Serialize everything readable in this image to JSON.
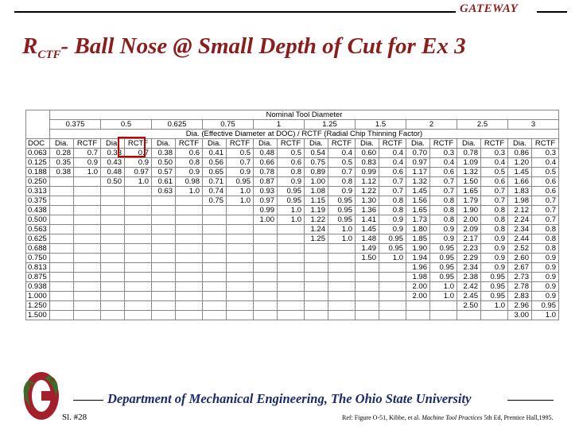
{
  "header": {
    "brand": "GATEWAY"
  },
  "title": {
    "main": "R",
    "sub": "CTF",
    "rest": "- Ball Nose @ Small Depth of Cut for Ex 3"
  },
  "table": {
    "top_header": "Nominal Tool Diameter",
    "diameters": [
      "0.375",
      "0.5",
      "0.625",
      "0.75",
      "1",
      "1.25",
      "1.5",
      "2",
      "2.5",
      "3"
    ],
    "sub_header": "Dia. (Effective Diameter at DOC) / RCTF (Radial Chip Thinning Factor)",
    "col_labels": [
      "DOC",
      "Dia.",
      "RCTF",
      "Dia.",
      "RCTF",
      "Dia.",
      "RCTF",
      "Dia.",
      "RCTF",
      "Dia.",
      "RCTF",
      "Dia.",
      "RCTF",
      "Dia.",
      "RCTF",
      "Dia.",
      "RCTF",
      "Dia.",
      "RCTF",
      "Dia.",
      "RCTF"
    ],
    "rows": [
      [
        "0.063",
        "0.28",
        "0.7",
        "0.33",
        "0.7",
        "0.38",
        "0.6",
        "0.41",
        "0.5",
        "0.48",
        "0.5",
        "0.54",
        "0.4",
        "0.60",
        "0.4",
        "0.70",
        "0.3",
        "0.78",
        "0.3",
        "0.86",
        "0.3"
      ],
      [
        "0.125",
        "0.35",
        "0.9",
        "0.43",
        "0.9",
        "0.50",
        "0.8",
        "0.56",
        "0.7",
        "0.66",
        "0.6",
        "0.75",
        "0.5",
        "0.83",
        "0.4",
        "0.97",
        "0.4",
        "1.09",
        "0.4",
        "1.20",
        "0.4"
      ],
      [
        "0.188",
        "0.38",
        "1.0",
        "0.48",
        "0.97",
        "0.57",
        "0.9",
        "0.65",
        "0.9",
        "0.78",
        "0.8",
        "0.89",
        "0.7",
        "0.99",
        "0.6",
        "1.17",
        "0.6",
        "1.32",
        "0.5",
        "1.45",
        "0.5"
      ],
      [
        "0.250",
        "",
        "",
        "0.50",
        "1.0",
        "0.61",
        "0.98",
        "0.71",
        "0.95",
        "0.87",
        "0.9",
        "1.00",
        "0.8",
        "1.12",
        "0.7",
        "1.32",
        "0.7",
        "1.50",
        "0.6",
        "1.66",
        "0.6"
      ],
      [
        "0.313",
        "",
        "",
        "",
        "",
        "0.63",
        "1.0",
        "0.74",
        "1.0",
        "0.93",
        "0.95",
        "1.08",
        "0.9",
        "1.22",
        "0.7",
        "1.45",
        "0.7",
        "1.65",
        "0.7",
        "1.83",
        "0.6"
      ],
      [
        "0.375",
        "",
        "",
        "",
        "",
        "",
        "",
        "0.75",
        "1.0",
        "0.97",
        "0.95",
        "1.15",
        "0.95",
        "1.30",
        "0.8",
        "1.56",
        "0.8",
        "1.79",
        "0.7",
        "1.98",
        "0.7"
      ],
      [
        "0.438",
        "",
        "",
        "",
        "",
        "",
        "",
        "",
        "",
        "0.99",
        "1.0",
        "1.19",
        "0.95",
        "1.36",
        "0.8",
        "1.65",
        "0.8",
        "1.90",
        "0.8",
        "2.12",
        "0.7"
      ],
      [
        "0.500",
        "",
        "",
        "",
        "",
        "",
        "",
        "",
        "",
        "1.00",
        "1.0",
        "1.22",
        "0.95",
        "1.41",
        "0.9",
        "1.73",
        "0.8",
        "2.00",
        "0.8",
        "2.24",
        "0.7"
      ],
      [
        "0.563",
        "",
        "",
        "",
        "",
        "",
        "",
        "",
        "",
        "",
        "",
        "1.24",
        "1.0",
        "1.45",
        "0.9",
        "1.80",
        "0.9",
        "2.09",
        "0.8",
        "2.34",
        "0.8"
      ],
      [
        "0.625",
        "",
        "",
        "",
        "",
        "",
        "",
        "",
        "",
        "",
        "",
        "1.25",
        "1.0",
        "1.48",
        "0.95",
        "1.85",
        "0.9",
        "2.17",
        "0.9",
        "2.44",
        "0.8"
      ],
      [
        "0.688",
        "",
        "",
        "",
        "",
        "",
        "",
        "",
        "",
        "",
        "",
        "",
        "",
        "1.49",
        "0.95",
        "1.90",
        "0.95",
        "2.23",
        "0.9",
        "2.52",
        "0.8"
      ],
      [
        "0.750",
        "",
        "",
        "",
        "",
        "",
        "",
        "",
        "",
        "",
        "",
        "",
        "",
        "1.50",
        "1.0",
        "1.94",
        "0.95",
        "2.29",
        "0.9",
        "2.60",
        "0.9"
      ],
      [
        "0.813",
        "",
        "",
        "",
        "",
        "",
        "",
        "",
        "",
        "",
        "",
        "",
        "",
        "",
        "",
        "1.96",
        "0.95",
        "2.34",
        "0.9",
        "2.67",
        "0.9"
      ],
      [
        "0.875",
        "",
        "",
        "",
        "",
        "",
        "",
        "",
        "",
        "",
        "",
        "",
        "",
        "",
        "",
        "1.98",
        "0.95",
        "2.38",
        "0.95",
        "2.73",
        "0.9"
      ],
      [
        "0.938",
        "",
        "",
        "",
        "",
        "",
        "",
        "",
        "",
        "",
        "",
        "",
        "",
        "",
        "",
        "2.00",
        "1.0",
        "2.42",
        "0.95",
        "2.78",
        "0.9"
      ],
      [
        "1.000",
        "",
        "",
        "",
        "",
        "",
        "",
        "",
        "",
        "",
        "",
        "",
        "",
        "",
        "",
        "2.00",
        "1.0",
        "2.45",
        "0.95",
        "2.83",
        "0.9"
      ],
      [
        "1.250",
        "",
        "",
        "",
        "",
        "",
        "",
        "",
        "",
        "",
        "",
        "",
        "",
        "",
        "",
        "",
        "",
        "2.50",
        "1.0",
        "2.96",
        "0.95"
      ],
      [
        "1.500",
        "",
        "",
        "",
        "",
        "",
        "",
        "",
        "",
        "",
        "",
        "",
        "",
        "",
        "",
        "",
        "",
        "",
        "",
        "3.00",
        "1.0"
      ]
    ]
  },
  "footer": {
    "department": "Department of Mechanical Engineering, The Ohio State University",
    "slide": "Sl. #28",
    "ref_a": "Ref: Figure O-51, Kibbe, et al.",
    "ref_book": "Machine Tool Practices",
    "ref_b": "5th Ed, Prentice Hall,1995."
  },
  "colors": {
    "brand_red": "#8c1d1d",
    "footer_blue": "#1a2a6c",
    "highlight": "#c00000"
  }
}
